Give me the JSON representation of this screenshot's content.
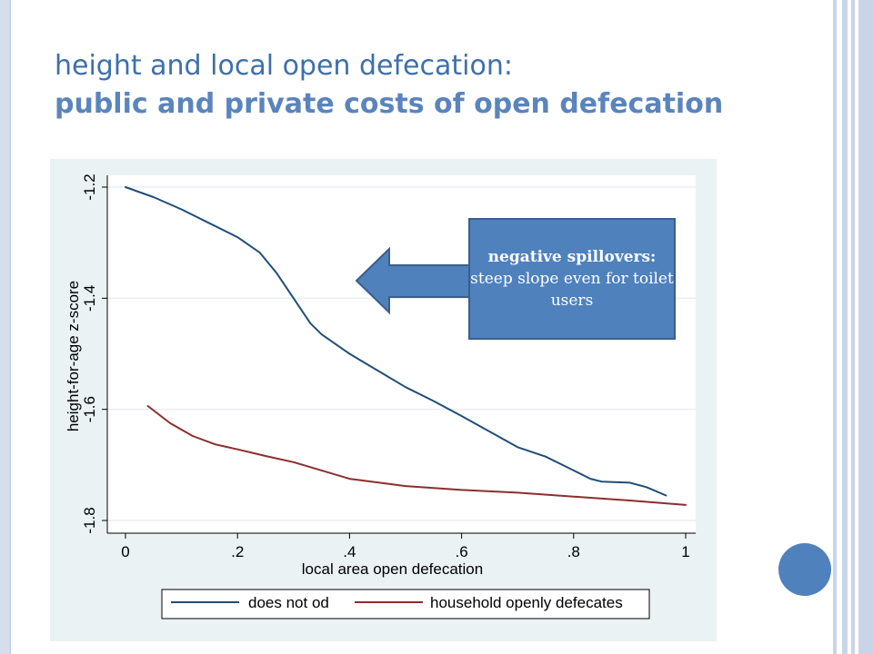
{
  "slide": {
    "title": "height and local open defecation:",
    "subtitle": "public and private costs of open defecation",
    "callout_heading": "negative spillovers:",
    "callout_body": "steep slope even for toilet users",
    "accent_color": "#4f81bd"
  },
  "chart_data": {
    "type": "line",
    "title": "",
    "xlabel": "local area open defecation",
    "ylabel": "height-for-age z-score",
    "xlim": [
      0,
      1
    ],
    "ylim": [
      -1.8,
      -1.2
    ],
    "xticks": [
      0,
      0.2,
      0.4,
      0.6,
      0.8,
      1
    ],
    "xtick_labels": [
      "0",
      ".2",
      ".4",
      ".6",
      ".8",
      "1"
    ],
    "yticks": [
      -1.8,
      -1.6,
      -1.4,
      -1.2
    ],
    "ytick_labels": [
      "-1.8",
      "-1.6",
      "-1.4",
      "-1.2"
    ],
    "grid": true,
    "legend_position": "bottom",
    "series": [
      {
        "name": "does not od",
        "color": "#1f4e79",
        "x": [
          0,
          0.05,
          0.1,
          0.15,
          0.2,
          0.24,
          0.27,
          0.3,
          0.33,
          0.35,
          0.4,
          0.45,
          0.5,
          0.55,
          0.6,
          0.65,
          0.7,
          0.75,
          0.8,
          0.83,
          0.85,
          0.9,
          0.93,
          0.965
        ],
        "y": [
          -1.2,
          -1.218,
          -1.24,
          -1.265,
          -1.29,
          -1.318,
          -1.355,
          -1.4,
          -1.445,
          -1.465,
          -1.5,
          -1.53,
          -1.56,
          -1.585,
          -1.612,
          -1.64,
          -1.668,
          -1.685,
          -1.71,
          -1.725,
          -1.73,
          -1.732,
          -1.74,
          -1.755
        ]
      },
      {
        "name": "household openly defecates",
        "color": "#8b2e2e",
        "x": [
          0.04,
          0.08,
          0.12,
          0.16,
          0.2,
          0.25,
          0.3,
          0.35,
          0.4,
          0.5,
          0.6,
          0.7,
          0.8,
          0.9,
          1.0
        ],
        "y": [
          -1.594,
          -1.625,
          -1.648,
          -1.663,
          -1.672,
          -1.684,
          -1.695,
          -1.71,
          -1.725,
          -1.738,
          -1.745,
          -1.75,
          -1.757,
          -1.764,
          -1.772
        ]
      }
    ]
  }
}
